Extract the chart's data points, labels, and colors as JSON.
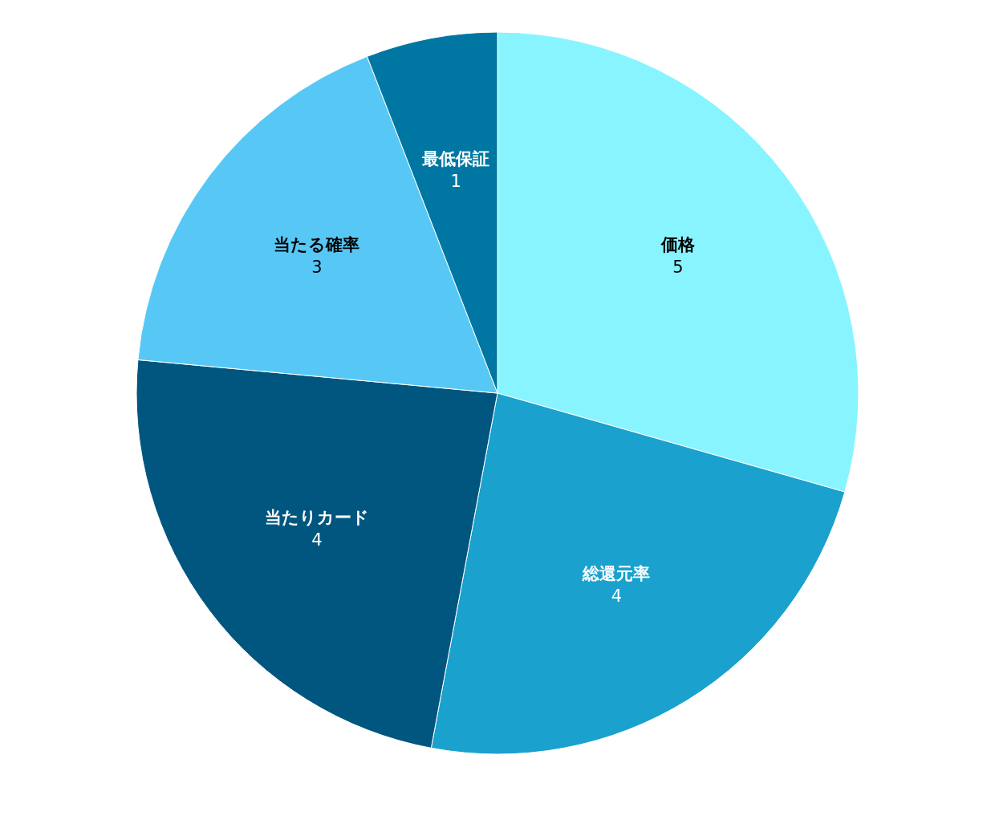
{
  "chart_data": {
    "type": "pie",
    "categories": [
      "価格",
      "総還元率",
      "当たりカード",
      "当たる確率",
      "最低保証"
    ],
    "values": [
      5,
      4,
      4,
      3,
      1
    ],
    "colors": [
      "#88f4ff",
      "#1aa1cd",
      "#00567e",
      "#57c8f5",
      "#0077a2"
    ],
    "data_labels": true,
    "legend": false
  }
}
